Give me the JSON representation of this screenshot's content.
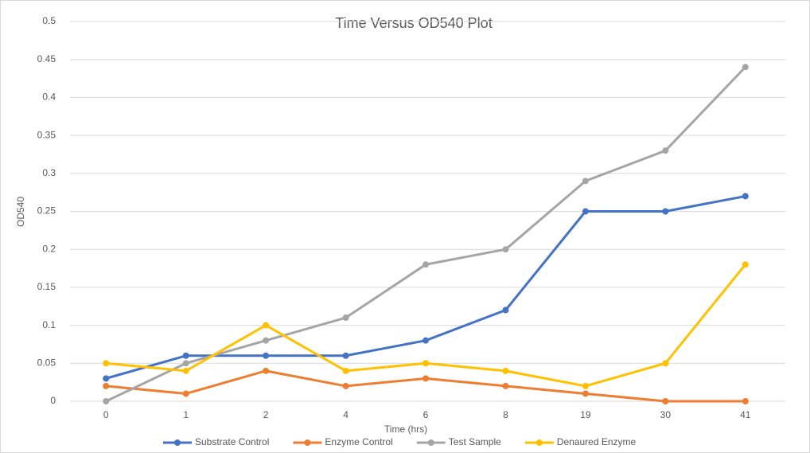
{
  "chart_data": {
    "type": "line",
    "title": "Time Versus OD540 Plot",
    "x_label": "Time (hrs)",
    "y_label": "OD540",
    "categories": [
      "0",
      "1",
      "2",
      "4",
      "6",
      "8",
      "19",
      "30",
      "41"
    ],
    "series": [
      {
        "name": "Substrate Control",
        "color": "#4472c4",
        "values": [
          0.03,
          0.06,
          0.06,
          0.06,
          0.08,
          0.12,
          0.25,
          0.25,
          0.27
        ]
      },
      {
        "name": "Enzyme Control",
        "color": "#ed7d31",
        "values": [
          0.02,
          0.01,
          0.04,
          0.02,
          0.03,
          0.02,
          0.01,
          0,
          0
        ]
      },
      {
        "name": "Test Sample",
        "color": "#a5a5a5",
        "values": [
          0,
          0.05,
          0.08,
          0.11,
          0.18,
          0.2,
          0.29,
          0.33,
          0.44
        ]
      },
      {
        "name": "Denaured Enzyme",
        "color": "#ffc000",
        "values": [
          0.05,
          0.04,
          0.1,
          0.04,
          0.05,
          0.04,
          0.02,
          0.05,
          0.18
        ]
      }
    ],
    "ylim": [
      0,
      0.5
    ],
    "yticks": [
      0,
      0.05,
      0.1,
      0.15,
      0.2,
      0.25,
      0.3,
      0.35,
      0.4,
      0.45,
      0.5
    ],
    "grid": true,
    "legend": "bottom"
  }
}
